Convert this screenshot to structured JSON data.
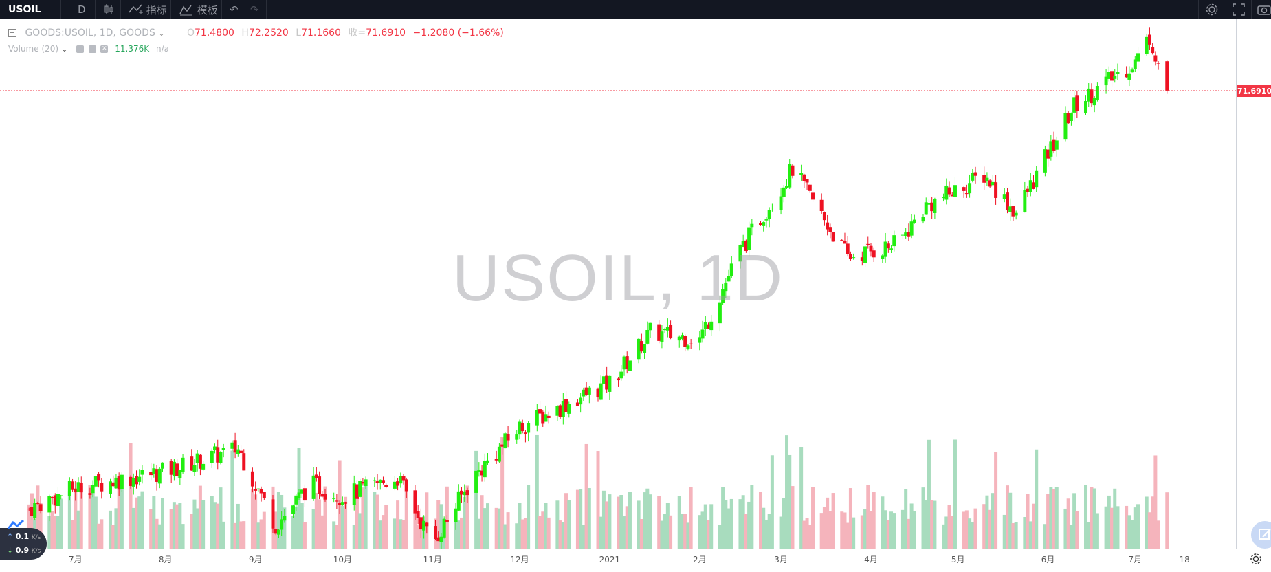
{
  "toolbar": {
    "symbol": "USOIL",
    "interval": "D",
    "indicators_label": "指标",
    "templates_label": "模板"
  },
  "legend": {
    "title": "GOODS:USOIL, 1D, GOODS",
    "o_label": "O",
    "o": "71.4800",
    "h_label": "H",
    "h": "72.2520",
    "l_label": "L",
    "l": "71.1660",
    "c_label": "收=",
    "c": "71.6910",
    "change": "−1.2080 (−1.66%)",
    "volume_label": "Volume (20)",
    "volume_value": "11.376K",
    "volume_ma": "n/a"
  },
  "watermark": "USOIL, 1D",
  "last_price": "71.6910",
  "net_widget": {
    "up": "0.1",
    "down": "0.9",
    "unit": "K/s"
  },
  "colors": {
    "up": "#22ee11",
    "down": "#ee1122",
    "vol_up": "#a8dcbe",
    "vol_down": "#f5b4bc",
    "last_line": "#f23645"
  },
  "chart_data": {
    "type": "candlestick",
    "y_price_range": [
      37,
      73
    ],
    "x_tick_labels": [
      "7月",
      "8月",
      "9月",
      "10月",
      "11月",
      "12月",
      "2021",
      "2月",
      "3月",
      "4月",
      "5月",
      "6月",
      "7月",
      "18"
    ],
    "closes_key_points": [
      {
        "date": "2020-06-15",
        "price": 38.5
      },
      {
        "date": "2020-07-01",
        "price": 40.2
      },
      {
        "date": "2020-08-01",
        "price": 41.5
      },
      {
        "date": "2020-08-26",
        "price": 43.3
      },
      {
        "date": "2020-09-08",
        "price": 37.2
      },
      {
        "date": "2020-09-20",
        "price": 40.5
      },
      {
        "date": "2020-10-01",
        "price": 39.5
      },
      {
        "date": "2020-10-20",
        "price": 41.0
      },
      {
        "date": "2020-11-01",
        "price": 35.8
      },
      {
        "date": "2020-11-15",
        "price": 41.0
      },
      {
        "date": "2020-12-01",
        "price": 45.0
      },
      {
        "date": "2021-01-01",
        "price": 48.5
      },
      {
        "date": "2021-01-15",
        "price": 52.5
      },
      {
        "date": "2021-02-01",
        "price": 52.0
      },
      {
        "date": "2021-02-15",
        "price": 59.0
      },
      {
        "date": "2021-03-05",
        "price": 65.5
      },
      {
        "date": "2021-03-24",
        "price": 58.5
      },
      {
        "date": "2021-04-10",
        "price": 59.5
      },
      {
        "date": "2021-04-20",
        "price": 62.5
      },
      {
        "date": "2021-05-10",
        "price": 65.0
      },
      {
        "date": "2021-05-21",
        "price": 62.0
      },
      {
        "date": "2021-06-10",
        "price": 70.5
      },
      {
        "date": "2021-07-01",
        "price": 74.0
      },
      {
        "date": "2021-07-06",
        "price": 76.0
      },
      {
        "date": "2021-07-12",
        "price": 71.691
      }
    ],
    "volume_series_name": "Volume (20)"
  }
}
